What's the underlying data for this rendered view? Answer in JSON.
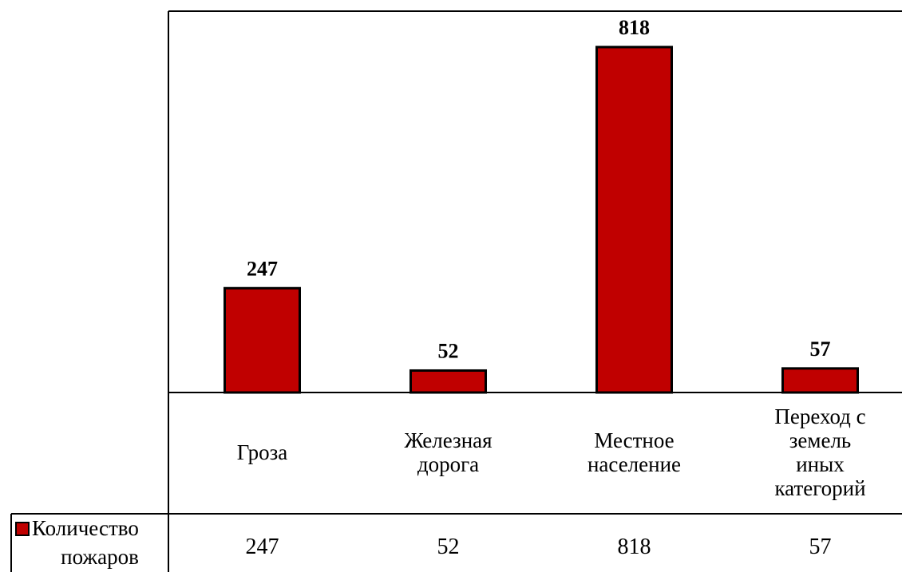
{
  "chart_data": {
    "type": "bar",
    "categories": [
      "Гроза",
      "Железная дорога",
      "Местное население",
      "Переход с земель иных категорий"
    ],
    "category_lines": [
      [
        "Гроза"
      ],
      [
        "Железная",
        "дорога"
      ],
      [
        "Местное",
        "население"
      ],
      [
        "Переход с",
        "земель",
        "иных",
        "категорий"
      ]
    ],
    "series": [
      {
        "name": "Количество пожаров",
        "name_lines": [
          "Количество",
          "пожаров"
        ],
        "values": [
          247,
          52,
          818,
          57
        ],
        "color": "#c00000"
      }
    ],
    "ylim": [
      0,
      818
    ],
    "grid": false,
    "legend": "bottom-left-data-table",
    "data_table": true,
    "title": "",
    "xlabel": "",
    "ylabel": ""
  }
}
